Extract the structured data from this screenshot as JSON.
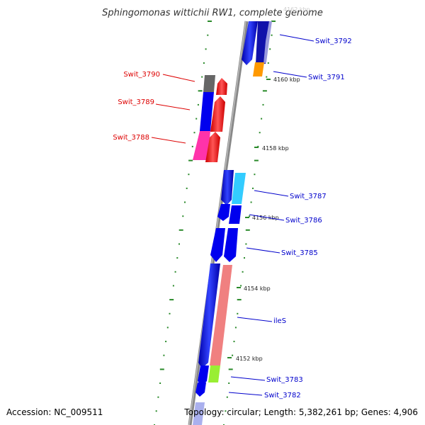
{
  "title": "Sphingomonas wittichii RW1, complete genome",
  "footer": {
    "accession": "Accession: NC_009511",
    "topology": "Topology: circular; Length: 5,382,261 bp; Genes: 4,906"
  },
  "scale_labels": [
    "4160 kbp",
    "4158 kbp",
    "4156 kbp",
    "4154 kbp",
    "4152 kbp"
  ],
  "faded_scale_label": "4162 kbp",
  "gene_labels": [
    {
      "text": "Swit_3792",
      "color": "#0000cc"
    },
    {
      "text": "Swit_3791",
      "color": "#0000cc"
    },
    {
      "text": "Swit_3790",
      "color": "#dd0000"
    },
    {
      "text": "Swit_3789",
      "color": "#dd0000"
    },
    {
      "text": "Swit_3788",
      "color": "#dd0000"
    },
    {
      "text": "Swit_3787",
      "color": "#0000cc"
    },
    {
      "text": "Swit_3786",
      "color": "#0000cc"
    },
    {
      "text": "Swit_3785",
      "color": "#0000cc"
    },
    {
      "text": "ileS",
      "color": "#0000cc"
    },
    {
      "text": "Swit_3783",
      "color": "#0000cc"
    },
    {
      "text": "Swit_3782",
      "color": "#0000cc"
    }
  ],
  "colors": {
    "backbone": "#888888",
    "tick": "#2a8a2a",
    "blue": "#0000ee",
    "red": "#ff0000",
    "orange": "#ff9900",
    "magenta": "#ff33aa",
    "gray": "#666666",
    "cyan": "#33ccff",
    "salmon": "#f08080",
    "lime": "#99ee33"
  }
}
